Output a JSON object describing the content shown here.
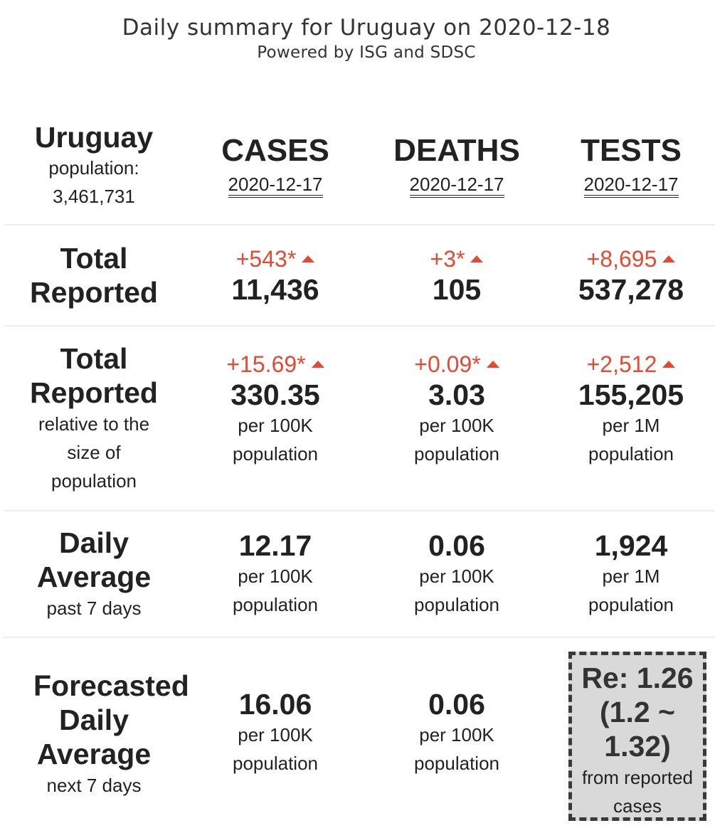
{
  "header": {
    "title": "Daily summary for Uruguay on 2020-12-18",
    "subtitle": "Powered by ISG and SDSC"
  },
  "country": {
    "name": "Uruguay",
    "population_label": "population:",
    "population": "3,461,731"
  },
  "columns": [
    {
      "name": "CASES",
      "date": "2020-12-17"
    },
    {
      "name": "DEATHS",
      "date": "2020-12-17"
    },
    {
      "name": "TESTS",
      "date": "2020-12-17"
    }
  ],
  "total_reported": {
    "label_line1": "Total",
    "label_line2": "Reported",
    "cases": {
      "delta": "+543*",
      "value": "11,436"
    },
    "deaths": {
      "delta": "+3*",
      "value": "105"
    },
    "tests": {
      "delta": "+8,695",
      "value": "537,278"
    }
  },
  "relative": {
    "label_line1": "Total",
    "label_line2": "Reported",
    "label_line3": "relative to the",
    "label_line4": "size of",
    "label_line5": "population",
    "cases": {
      "delta": "+15.69*",
      "value": "330.35",
      "unit1": "per 100K",
      "unit2": "population"
    },
    "deaths": {
      "delta": "+0.09*",
      "value": "3.03",
      "unit1": "per 100K",
      "unit2": "population"
    },
    "tests": {
      "delta": "+2,512",
      "value": "155,205",
      "unit1": "per 1M",
      "unit2": "population"
    }
  },
  "daily_average": {
    "label_line1": "Daily",
    "label_line2": "Average",
    "label_line3": "past 7 days",
    "cases": {
      "value": "12.17",
      "unit1": "per 100K",
      "unit2": "population"
    },
    "deaths": {
      "value": "0.06",
      "unit1": "per 100K",
      "unit2": "population"
    },
    "tests": {
      "value": "1,924",
      "unit1": "per 1M",
      "unit2": "population"
    }
  },
  "forecast": {
    "label_line1": "Forecasted",
    "label_line2": "Daily",
    "label_line3": "Average",
    "label_line4": "next 7 days",
    "cases": {
      "value": "16.06",
      "unit1": "per 100K",
      "unit2": "population"
    },
    "deaths": {
      "value": "0.06",
      "unit1": "per 100K",
      "unit2": "population"
    }
  },
  "re_box": {
    "line1": "Re: 1.26",
    "line2": "(1.2 ~",
    "line3": "1.32)",
    "line4": "from reported",
    "line5": "cases"
  },
  "colors": {
    "increase": "#e34a33",
    "re_box_bg": "#d9d9d9",
    "re_box_border": "#3a3a3a",
    "divider": "#eeeeee"
  },
  "icons": {
    "increase": "triangle-up-icon"
  }
}
